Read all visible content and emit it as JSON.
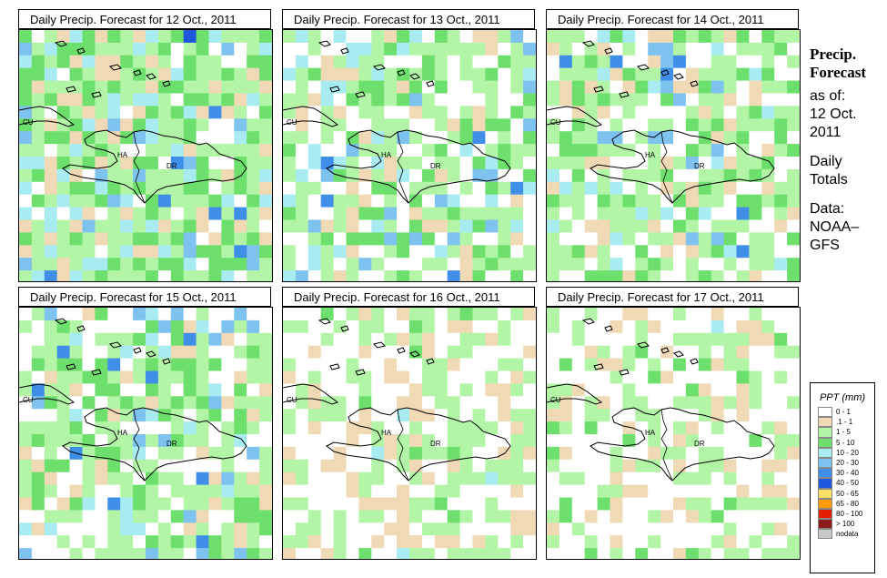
{
  "panels": [
    {
      "title": "Daily Precip. Forecast for  12 Oct., 2011",
      "seed": 12,
      "profile": "p12"
    },
    {
      "title": "Daily Precip. Forecast for  13 Oct., 2011",
      "seed": 13,
      "profile": "p13"
    },
    {
      "title": "Daily Precip. Forecast for  14 Oct., 2011",
      "seed": 14,
      "profile": "p14"
    },
    {
      "title": "Daily Precip. Forecast for  15 Oct., 2011",
      "seed": 15,
      "profile": "p15"
    },
    {
      "title": "Daily Precip. Forecast for  16 Oct., 2011",
      "seed": 16,
      "profile": "p16"
    },
    {
      "title": "Daily Precip. Forecast for  17 Oct., 2011",
      "seed": 17,
      "profile": "p17"
    }
  ],
  "map_labels": {
    "cu": "CU",
    "ha": "HA",
    "dr": "DR"
  },
  "side": {
    "title_line1": "Precip.",
    "title_line2": "Forecast",
    "asof_line1": "as of:",
    "asof_line2": "12 Oct.",
    "asof_line3": "2011",
    "totals_line1": "Daily",
    "totals_line2": "Totals",
    "data_line1": "Data:",
    "data_line2": "NOAA–",
    "data_line3": "GFS"
  },
  "legend": {
    "title": "PPT (mm)",
    "items": [
      {
        "label": "0 - 1",
        "color": "#ffffff"
      },
      {
        "label": ".1 - 1",
        "color": "#f0d9b5"
      },
      {
        "label": "1 - 5",
        "color": "#b3f5a6"
      },
      {
        "label": "5 - 10",
        "color": "#6ddf6d"
      },
      {
        "label": "10 - 20",
        "color": "#a8ecf2"
      },
      {
        "label": "20 - 30",
        "color": "#7ec2ef"
      },
      {
        "label": "30 - 40",
        "color": "#3f8fe8"
      },
      {
        "label": "40 - 50",
        "color": "#1f58de"
      },
      {
        "label": "50 - 65",
        "color": "#ffe066"
      },
      {
        "label": "65 - 80",
        "color": "#ff9a00"
      },
      {
        "label": "80 - 100",
        "color": "#e02000"
      },
      {
        "label": "> 100",
        "color": "#8b1a1a"
      },
      {
        "label": "nodata",
        "color": "#c8c8c8"
      }
    ]
  }
}
